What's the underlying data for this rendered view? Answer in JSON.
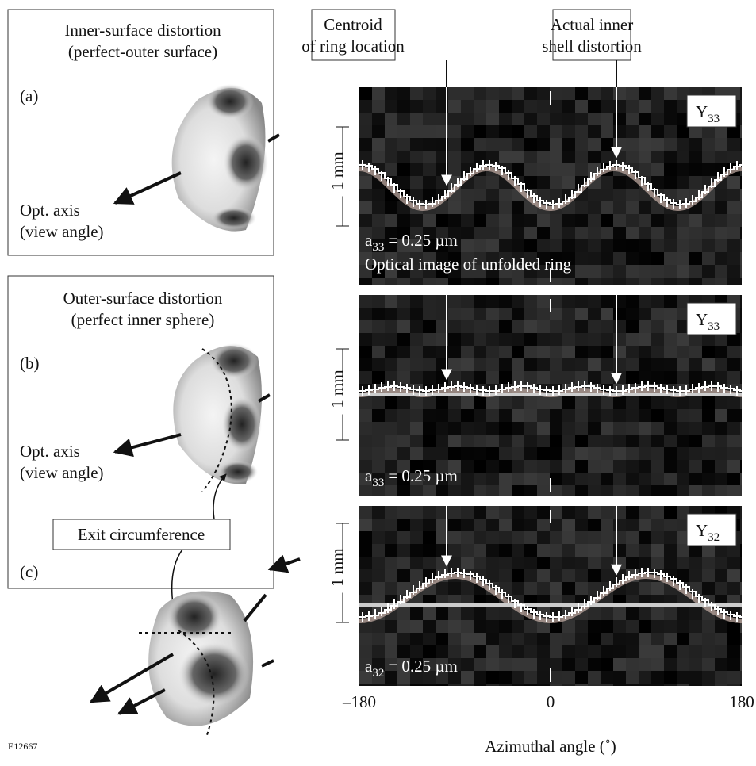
{
  "figure_id": "E12667",
  "left_panels": [
    {
      "title": [
        "Inner-surface distortion",
        "(perfect-outer surface)"
      ],
      "label": "(a)",
      "axis_label": [
        "Opt. axis",
        "(view angle)"
      ]
    },
    {
      "title": [
        "Outer-surface distortion",
        "(perfect inner sphere)"
      ],
      "labels": [
        "(b)",
        "(c)"
      ],
      "axis_label": [
        "Opt. axis",
        "(view angle)"
      ],
      "callout": "Exit circumference"
    }
  ],
  "callouts": [
    [
      "Centroid",
      "of ring location"
    ],
    [
      "Actual inner",
      "shell distortion"
    ]
  ],
  "chart_data": {
    "type": "image-strip",
    "xlabel": "Azimuthal angle (˚)",
    "xlim": [
      -180,
      180
    ],
    "xticks": [
      {
        "value": -180,
        "label": "–180"
      },
      0,
      180
    ],
    "scale_label": "1 mm",
    "panels": [
      {
        "mode": {
          "base": "Y",
          "sub": "33"
        },
        "annotation": {
          "base": "a",
          "sub": "33",
          "rest": "= 0.25 µm"
        },
        "caption": "Optical image of unfolded ring"
      },
      {
        "mode": {
          "base": "Y",
          "sub": "33"
        },
        "annotation": {
          "base": "a",
          "sub": "33",
          "rest": "= 0.25 µm"
        }
      },
      {
        "mode": {
          "base": "Y",
          "sub": "32"
        },
        "annotation": {
          "base": "a",
          "sub": "32",
          "rest": "= 0.25 µm"
        }
      }
    ]
  }
}
